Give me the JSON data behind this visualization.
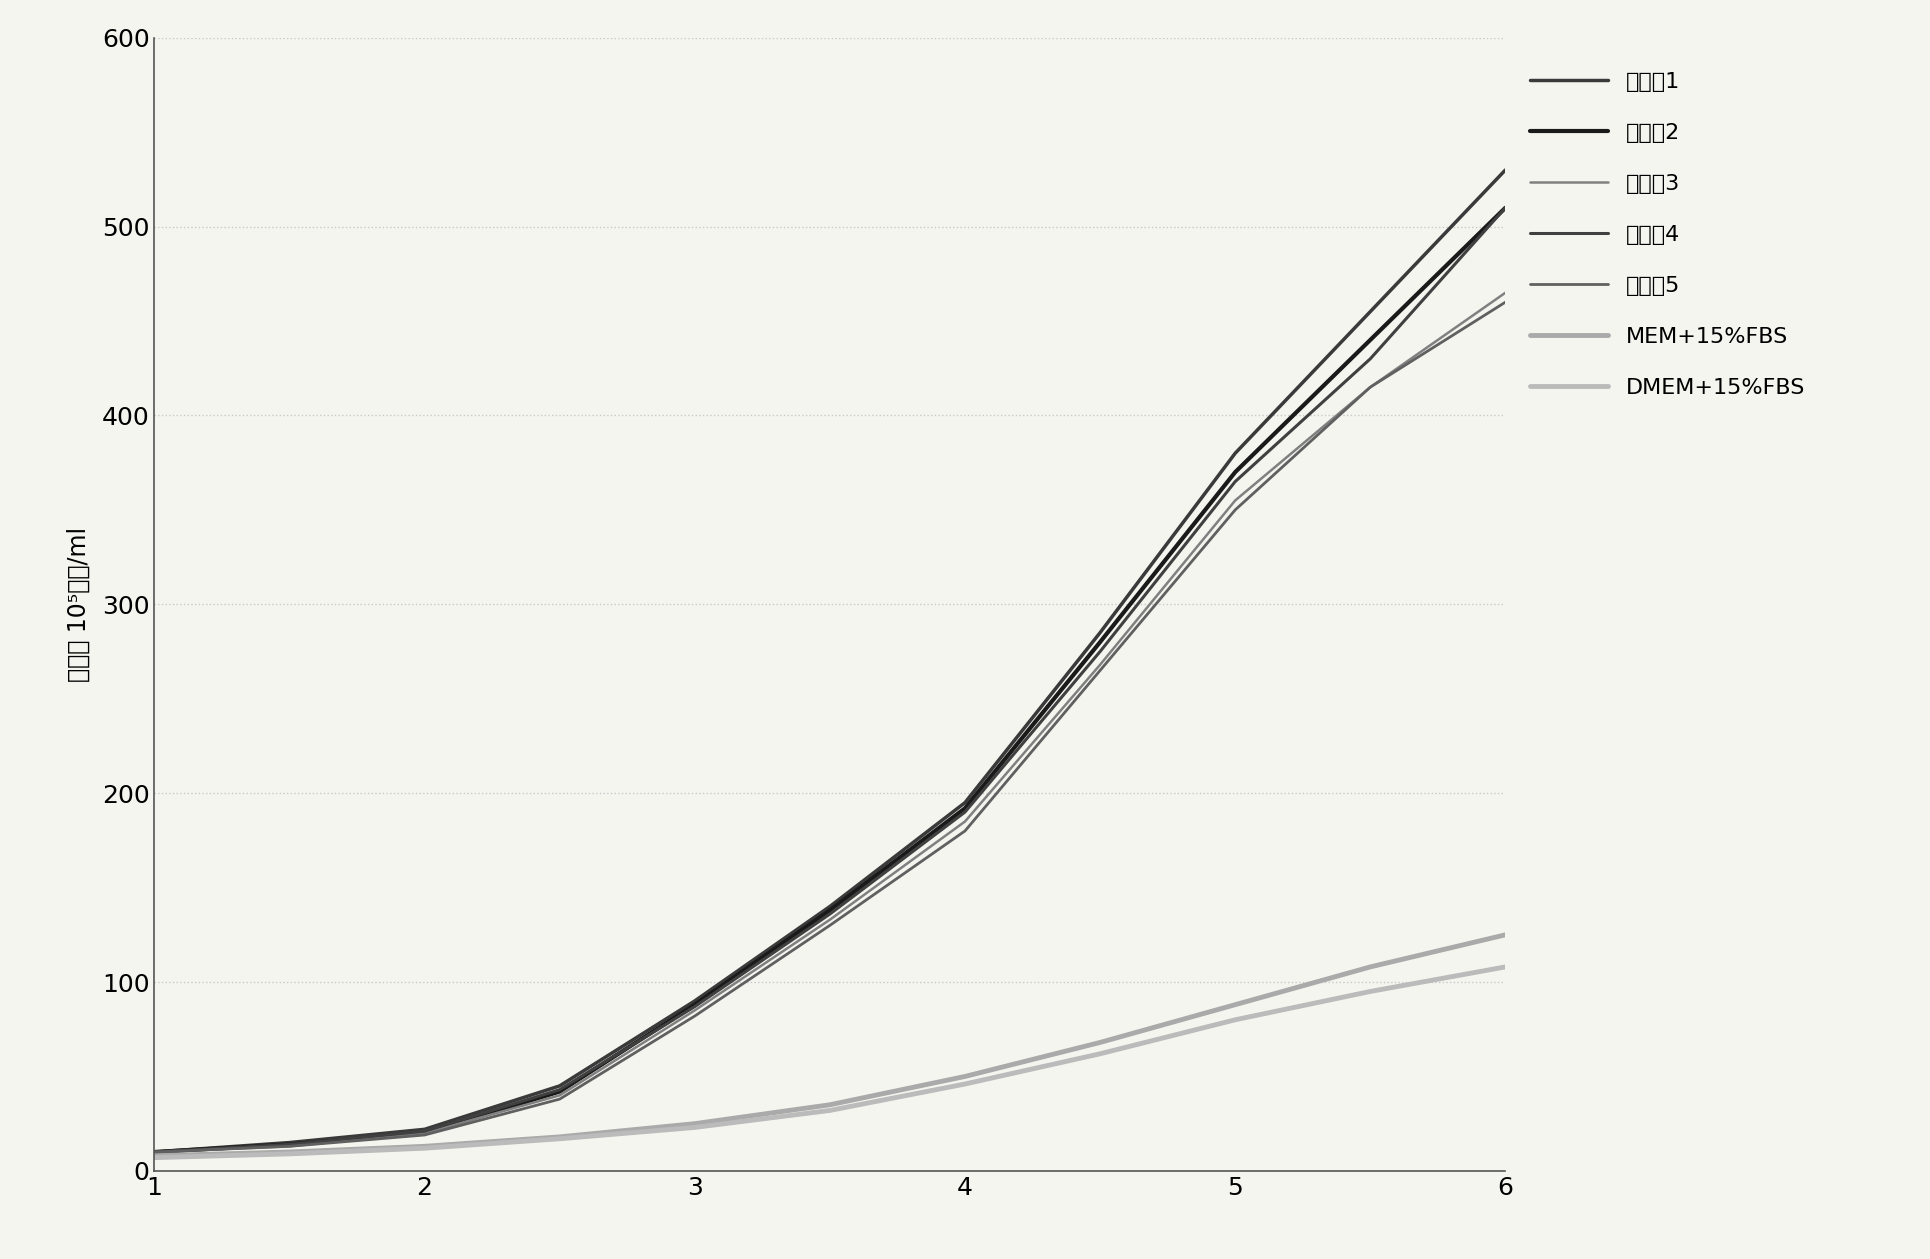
{
  "x": [
    1,
    1.5,
    2,
    2.5,
    3,
    3.5,
    4,
    4.5,
    5,
    5.5,
    6
  ],
  "series": {
    "实施例1": [
      10,
      15,
      22,
      45,
      90,
      140,
      195,
      285,
      380,
      455,
      530
    ],
    "实施例2": [
      10,
      14,
      20,
      42,
      88,
      138,
      192,
      280,
      370,
      440,
      510
    ],
    "实施例3": [
      10,
      13,
      20,
      40,
      85,
      133,
      185,
      268,
      355,
      415,
      465
    ],
    "实施例4": [
      10,
      14,
      21,
      43,
      87,
      136,
      190,
      275,
      365,
      430,
      510
    ],
    "实施例5": [
      10,
      13,
      19,
      38,
      82,
      130,
      180,
      265,
      350,
      415,
      460
    ],
    "MEM+15%FBS": [
      8,
      10,
      13,
      18,
      25,
      35,
      50,
      68,
      88,
      108,
      125
    ],
    "DMEM+15%FBS": [
      7,
      9,
      12,
      17,
      23,
      32,
      46,
      62,
      80,
      95,
      108
    ]
  },
  "colors": {
    "实施例1": "#3a3a3a",
    "实施例2": "#1a1a1a",
    "实施例3": "#808080",
    "实施例4": "#404040",
    "实施例5": "#606060",
    "MEM+15%FBS": "#aaaaaa",
    "DMEM+15%FBS": "#bbbbbb"
  },
  "linewidths": {
    "实施例1": 2.5,
    "实施例2": 3.0,
    "实施例3": 1.8,
    "实施例4": 2.2,
    "实施例5": 2.0,
    "MEM+15%FBS": 3.5,
    "DMEM+15%FBS": 3.5
  },
  "linestyles": {
    "实施例1": "-",
    "实施例2": "-",
    "实施例3": "-",
    "实施例4": "-",
    "实施例5": "-",
    "MEM+15%FBS": "-",
    "DMEM+15%FBS": "-"
  },
  "ylabel": "单位： 10⁵细胞/ml",
  "ylim": [
    0,
    600
  ],
  "xlim": [
    1,
    6
  ],
  "yticks": [
    0,
    100,
    200,
    300,
    400,
    500,
    600
  ],
  "xticks": [
    1,
    2,
    3,
    4,
    5,
    6
  ],
  "grid_color": "#c8c8c8",
  "background_color": "#f5f5f0",
  "legend_fontsize": 16,
  "tick_fontsize": 18,
  "ylabel_fontsize": 17
}
